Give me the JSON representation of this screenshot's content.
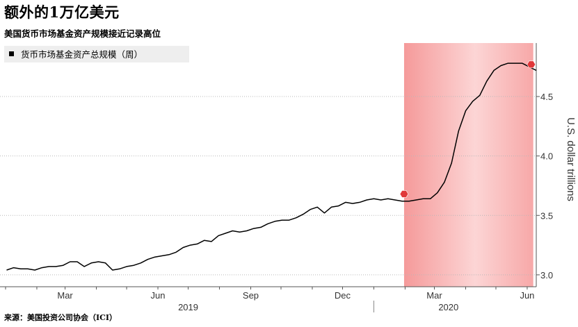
{
  "title": "额外的1万亿美元",
  "subtitle": "美国货币市场基金资产规模接近记录高位",
  "source": "来源：美国投资公司协会（ICI）",
  "chart_data": {
    "type": "line",
    "legend": "货币市场基金资产总规模（周）",
    "legend_position": "top-left",
    "ylabel": "U.S. dollar trillions",
    "ylim": [
      2.9,
      4.95
    ],
    "y_ticks": [
      3.0,
      3.5,
      4.0,
      4.5
    ],
    "y_tick_labels": [
      "3.0",
      "3.5",
      "4.0",
      "4.5"
    ],
    "xlim": [
      "2019-01-01",
      "2020-06-10"
    ],
    "x_ticks": [
      {
        "date": "2019-03-01",
        "label": "Mar"
      },
      {
        "date": "2019-06-01",
        "label": "Jun"
      },
      {
        "date": "2019-09-01",
        "label": "Sep"
      },
      {
        "date": "2019-12-01",
        "label": "Dec"
      },
      {
        "date": "2020-03-01",
        "label": "Mar"
      },
      {
        "date": "2020-06-01",
        "label": "Jun"
      }
    ],
    "year_labels": [
      {
        "year": "2019",
        "center": "2019-07-01"
      },
      {
        "year": "2020",
        "center": "2020-03-15"
      }
    ],
    "shaded_region": {
      "start": "2020-01-31",
      "end": "2020-06-07",
      "color": "#f28b8b"
    },
    "line_color": "#000000",
    "markers": [
      {
        "date": "2020-01-31",
        "value": 3.68,
        "color": "#e0383a"
      },
      {
        "date": "2020-06-05",
        "value": 4.77,
        "color": "#e0383a"
      }
    ],
    "series": [
      {
        "x": [
          "2019-01-02",
          "2019-01-09",
          "2019-01-16",
          "2019-01-23",
          "2019-01-30",
          "2019-02-06",
          "2019-02-13",
          "2019-02-20",
          "2019-02-27",
          "2019-03-06",
          "2019-03-13",
          "2019-03-20",
          "2019-03-27",
          "2019-04-03",
          "2019-04-10",
          "2019-04-17",
          "2019-04-24",
          "2019-05-01",
          "2019-05-08",
          "2019-05-15",
          "2019-05-22",
          "2019-05-29",
          "2019-06-05",
          "2019-06-12",
          "2019-06-19",
          "2019-06-26",
          "2019-07-03",
          "2019-07-10",
          "2019-07-17",
          "2019-07-24",
          "2019-07-31",
          "2019-08-07",
          "2019-08-14",
          "2019-08-21",
          "2019-08-28",
          "2019-09-04",
          "2019-09-11",
          "2019-09-18",
          "2019-09-25",
          "2019-10-02",
          "2019-10-09",
          "2019-10-16",
          "2019-10-23",
          "2019-10-30",
          "2019-11-06",
          "2019-11-13",
          "2019-11-20",
          "2019-11-27",
          "2019-12-04",
          "2019-12-11",
          "2019-12-18",
          "2019-12-25",
          "2020-01-01",
          "2020-01-08",
          "2020-01-15",
          "2020-01-22",
          "2020-01-29",
          "2020-02-05",
          "2020-02-12",
          "2020-02-19",
          "2020-02-26",
          "2020-03-04",
          "2020-03-11",
          "2020-03-18",
          "2020-03-25",
          "2020-04-01",
          "2020-04-08",
          "2020-04-15",
          "2020-04-22",
          "2020-04-29",
          "2020-05-06",
          "2020-05-13",
          "2020-05-20",
          "2020-05-27",
          "2020-06-03",
          "2020-06-10"
        ],
        "values": [
          3.04,
          3.06,
          3.05,
          3.05,
          3.04,
          3.06,
          3.07,
          3.07,
          3.08,
          3.11,
          3.11,
          3.07,
          3.1,
          3.11,
          3.1,
          3.04,
          3.05,
          3.07,
          3.08,
          3.1,
          3.13,
          3.15,
          3.16,
          3.17,
          3.19,
          3.23,
          3.25,
          3.26,
          3.29,
          3.28,
          3.33,
          3.35,
          3.37,
          3.36,
          3.37,
          3.39,
          3.4,
          3.43,
          3.45,
          3.46,
          3.46,
          3.48,
          3.51,
          3.55,
          3.57,
          3.52,
          3.57,
          3.58,
          3.61,
          3.6,
          3.61,
          3.63,
          3.64,
          3.63,
          3.64,
          3.63,
          3.62,
          3.62,
          3.63,
          3.64,
          3.64,
          3.69,
          3.78,
          3.94,
          4.21,
          4.38,
          4.46,
          4.51,
          4.63,
          4.72,
          4.76,
          4.78,
          4.78,
          4.78,
          4.75,
          4.72
        ]
      }
    ]
  }
}
